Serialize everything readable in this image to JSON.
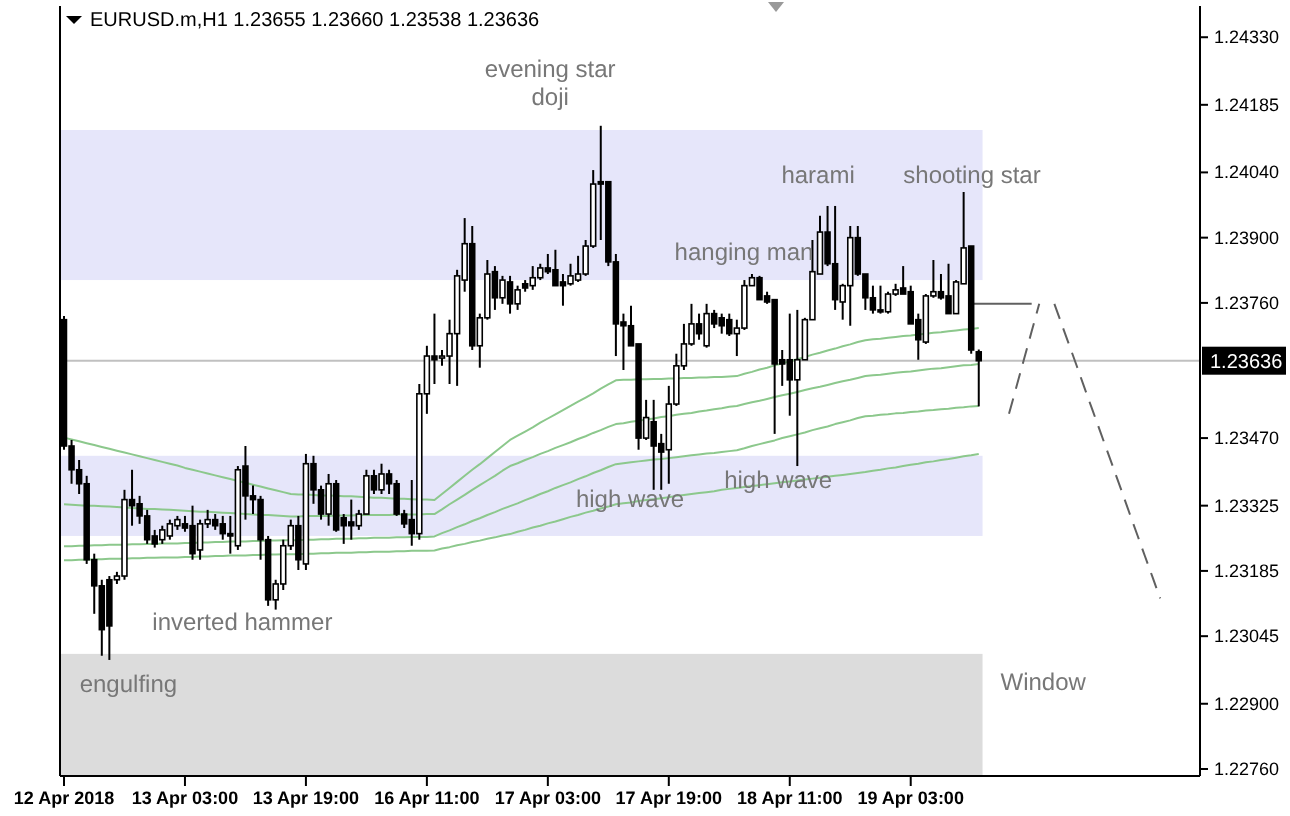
{
  "chart_data": {
    "type": "candlestick",
    "title": "EURUSD.m,H1 1.23655 1.23660 1.23538 1.23636",
    "color": "#000000",
    "categories": [
      "12 Apr 2018",
      null,
      null,
      null,
      null,
      null,
      null,
      null,
      null,
      null,
      null,
      null,
      null,
      null,
      null,
      null,
      "13 Apr 03:00",
      null,
      null,
      null,
      null,
      null,
      null,
      null,
      null,
      null,
      null,
      null,
      null,
      null,
      null,
      null,
      "13 Apr 19:00",
      null,
      null,
      null,
      null,
      null,
      null,
      null,
      null,
      null,
      null,
      null,
      null,
      null,
      null,
      null,
      "16 Apr 11:00",
      null,
      null,
      null,
      null,
      null,
      null,
      null,
      null,
      null,
      null,
      null,
      null,
      null,
      null,
      null,
      "17 Apr 03:00",
      null,
      null,
      null,
      null,
      null,
      null,
      null,
      null,
      null,
      null,
      null,
      null,
      null,
      null,
      null,
      "17 Apr 19:00",
      null,
      null,
      null,
      null,
      null,
      null,
      null,
      null,
      null,
      null,
      null,
      null,
      null,
      null,
      null,
      "18 Apr 11:00",
      null,
      null,
      null,
      null,
      null,
      null,
      null,
      null,
      null,
      null,
      null,
      null,
      null,
      null,
      null,
      "19 Apr 03:00",
      null,
      null,
      null,
      null,
      null,
      null,
      null,
      null,
      null,
      null,
      null,
      null,
      null,
      null,
      null,
      null,
      null,
      null,
      null,
      null,
      null,
      null,
      null,
      null,
      null,
      null,
      null,
      null,
      null,
      null,
      null,
      null,
      null,
      null,
      null,
      null,
      null,
      null
    ],
    "ohlc": [
      [
        1.23724,
        1.23732,
        1.23445,
        1.23453
      ],
      [
        1.23453,
        1.23466,
        1.23372,
        1.23402
      ],
      [
        1.23402,
        1.23423,
        1.2335,
        1.23372
      ],
      [
        1.23372,
        1.23389,
        1.232,
        1.23209
      ],
      [
        1.23209,
        1.23222,
        1.23093,
        1.23153
      ],
      [
        1.23153,
        1.23166,
        1.23003,
        1.23059
      ],
      [
        1.23166,
        1.23174,
        1.22994,
        1.23067
      ],
      [
        1.23166,
        1.23183,
        1.23157,
        1.23174
      ],
      [
        1.23174,
        1.23359,
        1.23166,
        1.23338
      ],
      [
        1.23338,
        1.23402,
        1.23282,
        1.23325
      ],
      [
        1.23329,
        1.23346,
        1.23286,
        1.23303
      ],
      [
        1.23303,
        1.23316,
        1.23243,
        1.23252
      ],
      [
        1.2326,
        1.23273,
        1.23235,
        1.23243
      ],
      [
        1.23252,
        1.23282,
        1.23243,
        1.23273
      ],
      [
        1.2326,
        1.23295,
        1.23252,
        1.23286
      ],
      [
        1.23282,
        1.23303,
        1.23273,
        1.23295
      ],
      [
        1.23286,
        1.23303,
        1.23269,
        1.23277
      ],
      [
        1.23282,
        1.23325,
        1.23209,
        1.23222
      ],
      [
        1.2323,
        1.23295,
        1.23209,
        1.23286
      ],
      [
        1.23286,
        1.23316,
        1.23277,
        1.23295
      ],
      [
        1.23295,
        1.23307,
        1.23273,
        1.23282
      ],
      [
        1.23286,
        1.23303,
        1.23252,
        1.23265
      ],
      [
        1.23265,
        1.23303,
        1.23222,
        1.2326
      ],
      [
        1.23239,
        1.2341,
        1.2323,
        1.23402
      ],
      [
        1.2341,
        1.23453,
        1.23295,
        1.23346
      ],
      [
        1.23346,
        1.23368,
        1.23307,
        1.23338
      ],
      [
        1.23338,
        1.23346,
        1.23209,
        1.23252
      ],
      [
        1.23252,
        1.2326,
        1.2311,
        1.23123
      ],
      [
        1.23123,
        1.23166,
        1.23102,
        1.23157
      ],
      [
        1.23157,
        1.23252,
        1.23144,
        1.23239
      ],
      [
        1.23239,
        1.23295,
        1.2323,
        1.23282
      ],
      [
        1.23282,
        1.23303,
        1.23187,
        1.23209
      ],
      [
        1.232,
        1.23436,
        1.23187,
        1.23415
      ],
      [
        1.23415,
        1.23432,
        1.23329,
        1.23359
      ],
      [
        1.23359,
        1.23368,
        1.23295,
        1.23307
      ],
      [
        1.23307,
        1.23393,
        1.23282,
        1.23372
      ],
      [
        1.23372,
        1.2338,
        1.23269,
        1.23273
      ],
      [
        1.23299,
        1.23307,
        1.23243,
        1.23282
      ],
      [
        1.2329,
        1.23338,
        1.23252,
        1.23282
      ],
      [
        1.23282,
        1.23316,
        1.23273,
        1.23307
      ],
      [
        1.23307,
        1.23402,
        1.23307,
        1.23389
      ],
      [
        1.23389,
        1.23402,
        1.2335,
        1.23359
      ],
      [
        1.23359,
        1.23415,
        1.2335,
        1.23393
      ],
      [
        1.23393,
        1.23402,
        1.2335,
        1.23372
      ],
      [
        1.23372,
        1.2338,
        1.23303,
        1.23307
      ],
      [
        1.23307,
        1.23316,
        1.23277,
        1.23286
      ],
      [
        1.23295,
        1.2338,
        1.23239,
        1.23265
      ],
      [
        1.23265,
        1.23586,
        1.23252,
        1.23565
      ],
      [
        1.23565,
        1.23668,
        1.23522,
        1.23646
      ],
      [
        1.23646,
        1.23737,
        1.23586,
        1.23638
      ],
      [
        1.23642,
        1.23659,
        1.23625,
        1.23646
      ],
      [
        1.23646,
        1.23724,
        1.23586,
        1.23694
      ],
      [
        1.23694,
        1.23831,
        1.23582,
        1.23818
      ],
      [
        1.23809,
        1.23942,
        1.23784,
        1.23887
      ],
      [
        1.23887,
        1.23925,
        1.23659,
        1.23668
      ],
      [
        1.23668,
        1.23737,
        1.23621,
        1.23728
      ],
      [
        1.23728,
        1.23852,
        1.23724,
        1.23822
      ],
      [
        1.23827,
        1.23839,
        1.23745,
        1.23771
      ],
      [
        1.23771,
        1.23818,
        1.23758,
        1.23809
      ],
      [
        1.23805,
        1.23818,
        1.23737,
        1.23758
      ],
      [
        1.23758,
        1.23797,
        1.23745,
        1.23788
      ],
      [
        1.23801,
        1.23809,
        1.23784,
        1.23792
      ],
      [
        1.23797,
        1.23839,
        1.23788,
        1.23814
      ],
      [
        1.23814,
        1.23844,
        1.23809,
        1.23835
      ],
      [
        1.23835,
        1.23865,
        1.23822,
        1.23827
      ],
      [
        1.23831,
        1.23874,
        1.23797,
        1.23797
      ],
      [
        1.23805,
        1.23822,
        1.23754,
        1.23797
      ],
      [
        1.23801,
        1.23844,
        1.23797,
        1.23818
      ],
      [
        1.23809,
        1.23861,
        1.23805,
        1.23822
      ],
      [
        1.23822,
        1.23895,
        1.23818,
        1.23882
      ],
      [
        1.23882,
        1.24045,
        1.23878,
        1.24015
      ],
      [
        1.2402,
        1.2414,
        1.23895,
        1.24015
      ],
      [
        1.2402,
        1.2402,
        1.23839,
        1.23848
      ],
      [
        1.23848,
        1.23865,
        1.23646,
        1.23715
      ],
      [
        1.23719,
        1.23737,
        1.23616,
        1.23711
      ],
      [
        1.23711,
        1.23754,
        1.23668,
        1.23668
      ],
      [
        1.23672,
        1.23672,
        1.23445,
        1.2347
      ],
      [
        1.2347,
        1.23552,
        1.23466,
        1.23514
      ],
      [
        1.23505,
        1.23552,
        1.23359,
        1.23453
      ],
      [
        1.23458,
        1.23479,
        1.23359,
        1.2344
      ],
      [
        1.23445,
        1.23582,
        1.23372,
        1.23543
      ],
      [
        1.23543,
        1.23651,
        1.23539,
        1.23625
      ],
      [
        1.23625,
        1.23715,
        1.23616,
        1.23672
      ],
      [
        1.23672,
        1.23758,
        1.23668,
        1.23715
      ],
      [
        1.23715,
        1.23737,
        1.23681,
        1.23694
      ],
      [
        1.23668,
        1.23758,
        1.23664,
        1.23737
      ],
      [
        1.23737,
        1.23745,
        1.23706,
        1.23715
      ],
      [
        1.23728,
        1.23737,
        1.23694,
        1.23711
      ],
      [
        1.23724,
        1.23737,
        1.23689,
        1.23694
      ],
      [
        1.23694,
        1.23724,
        1.23646,
        1.23706
      ],
      [
        1.23706,
        1.23809,
        1.23702,
        1.23797
      ],
      [
        1.23797,
        1.23822,
        1.23797,
        1.23814
      ],
      [
        1.23814,
        1.23818,
        1.23767,
        1.23767
      ],
      [
        1.23775,
        1.23784,
        1.23758,
        1.23762
      ],
      [
        1.23767,
        1.23767,
        1.23479,
        1.23629
      ],
      [
        1.23638,
        1.23659,
        1.23582,
        1.23629
      ],
      [
        1.23638,
        1.23737,
        1.23518,
        1.23595
      ],
      [
        1.23595,
        1.23745,
        1.2341,
        1.23638
      ],
      [
        1.23638,
        1.23728,
        1.23638,
        1.23724
      ],
      [
        1.23724,
        1.23895,
        1.23724,
        1.23827
      ],
      [
        1.23822,
        1.23947,
        1.23822,
        1.23912
      ],
      [
        1.23912,
        1.23968,
        1.23839,
        1.23844
      ],
      [
        1.23844,
        1.23968,
        1.23745,
        1.23767
      ],
      [
        1.23762,
        1.23801,
        1.23724,
        1.23797
      ],
      [
        1.23797,
        1.23925,
        1.23711,
        1.239
      ],
      [
        1.239,
        1.23925,
        1.23818,
        1.23822
      ],
      [
        1.23822,
        1.23822,
        1.23745,
        1.23771
      ],
      [
        1.23771,
        1.23797,
        1.23737,
        1.23745
      ],
      [
        1.23745,
        1.23797,
        1.23737,
        1.23741
      ],
      [
        1.23741,
        1.23784,
        1.23737,
        1.23779
      ],
      [
        1.23779,
        1.23801,
        1.23775,
        1.23788
      ],
      [
        1.23792,
        1.23839,
        1.23779,
        1.23779
      ],
      [
        1.23784,
        1.23797,
        1.23715,
        1.23715
      ],
      [
        1.23724,
        1.23737,
        1.23638,
        1.23681
      ],
      [
        1.23676,
        1.23779,
        1.23672,
        1.23775
      ],
      [
        1.23775,
        1.23852,
        1.23771,
        1.23784
      ],
      [
        1.23784,
        1.23822,
        1.23767,
        1.23771
      ],
      [
        1.23775,
        1.23844,
        1.23737,
        1.23737
      ],
      [
        1.23737,
        1.23809,
        1.23737,
        1.23805
      ],
      [
        1.23801,
        1.23998,
        1.23801,
        1.23878
      ],
      [
        1.23882,
        1.23882,
        1.23651,
        1.23659
      ],
      [
        1.23655,
        1.2366,
        1.23538,
        1.23636
      ],
      null,
      null,
      null,
      null,
      null,
      null,
      null,
      null,
      null,
      null,
      null,
      null,
      null,
      null,
      null,
      null,
      null,
      null,
      null,
      null,
      null,
      null,
      null,
      null,
      null,
      null,
      null,
      null,
      null
    ],
    "series": [
      {
        "type": "line",
        "color": "#8cc88c",
        "values": [
          1.23471,
          1.23467,
          1.23463,
          1.23459,
          1.23455,
          1.23451,
          1.23447,
          1.23443,
          1.23439,
          1.23435,
          1.23431,
          1.23427,
          1.23423,
          1.23419,
          1.23415,
          1.23411,
          1.23406,
          1.23402,
          1.23398,
          1.23394,
          1.2339,
          1.23386,
          1.23382,
          1.23378,
          1.23374,
          1.2337,
          1.23366,
          1.23362,
          1.23358,
          1.23354,
          1.2335,
          1.23349,
          1.23349,
          1.23348,
          1.23347,
          1.23347,
          1.23346,
          1.23345,
          1.23345,
          1.23344,
          1.23343,
          1.23342,
          1.23342,
          1.23341,
          1.2334,
          1.2334,
          1.23339,
          1.23338,
          1.23338,
          1.23337,
          1.2335,
          1.23363,
          1.23376,
          1.23389,
          1.23402,
          1.23414,
          1.23427,
          1.2344,
          1.23453,
          1.23466,
          1.23475,
          1.23484,
          1.23493,
          1.23503,
          1.23512,
          1.23521,
          1.2353,
          1.23539,
          1.23548,
          1.23557,
          1.23566,
          1.23576,
          1.23585,
          1.23594,
          1.23595,
          1.23595,
          1.23596,
          1.23596,
          1.23597,
          1.23597,
          1.23598,
          1.23598,
          1.23599,
          1.23599,
          1.236,
          1.236,
          1.23601,
          1.23601,
          1.23602,
          1.23603,
          1.23608,
          1.23612,
          1.23617,
          1.23621,
          1.23626,
          1.2363,
          1.23635,
          1.23639,
          1.23644,
          1.23649,
          1.23653,
          1.23658,
          1.23662,
          1.23667,
          1.23671,
          1.23676,
          1.2368,
          1.23682,
          1.23683,
          1.23685,
          1.23687,
          1.23689,
          1.2369,
          1.23692,
          1.23694,
          1.23696,
          1.23697,
          1.23699,
          1.23701,
          1.23703,
          1.23704,
          1.23706,
          null,
          null,
          null,
          null,
          null,
          null,
          null,
          null,
          null,
          null,
          null,
          null,
          null,
          null,
          null,
          null,
          null,
          null,
          null,
          null,
          null,
          null,
          null,
          null,
          null,
          null,
          null,
          null,
          null
        ]
      },
      {
        "type": "line",
        "color": "#8cc88c",
        "values": [
          1.23328,
          1.23327,
          1.23326,
          1.23325,
          1.23325,
          1.23324,
          1.23323,
          1.23322,
          1.23321,
          1.2332,
          1.23319,
          1.23318,
          1.23318,
          1.23317,
          1.23316,
          1.23315,
          1.23314,
          1.23313,
          1.23312,
          1.23312,
          1.23311,
          1.2331,
          1.23309,
          1.23308,
          1.23307,
          1.23306,
          1.23305,
          1.23305,
          1.23304,
          1.23303,
          1.23302,
          1.23302,
          1.23303,
          1.23303,
          1.23303,
          1.23303,
          1.23304,
          1.23304,
          1.23304,
          1.23305,
          1.23305,
          1.23305,
          1.23305,
          1.23305,
          1.23306,
          1.23306,
          1.23306,
          1.23306,
          1.23307,
          1.23307,
          1.23317,
          1.23328,
          1.23338,
          1.23348,
          1.23359,
          1.23369,
          1.23379,
          1.23389,
          1.234,
          1.2341,
          1.23416,
          1.23423,
          1.23429,
          1.23436,
          1.23442,
          1.23449,
          1.23455,
          1.23461,
          1.23468,
          1.23474,
          1.23481,
          1.23487,
          1.23494,
          1.235,
          1.23502,
          1.23505,
          1.23507,
          1.2351,
          1.23512,
          1.23515,
          1.23517,
          1.2352,
          1.23522,
          1.23524,
          1.23527,
          1.23529,
          1.23532,
          1.23534,
          1.23537,
          1.23539,
          1.23543,
          1.23547,
          1.2355,
          1.23554,
          1.23558,
          1.23562,
          1.23565,
          1.23569,
          1.23573,
          1.23577,
          1.2358,
          1.23584,
          1.23588,
          1.23592,
          1.23595,
          1.23599,
          1.23603,
          1.23605,
          1.23606,
          1.23608,
          1.2361,
          1.23612,
          1.23613,
          1.23615,
          1.23617,
          1.23619,
          1.2362,
          1.23622,
          1.23624,
          1.23626,
          1.23627,
          1.23629,
          null,
          null,
          null,
          null,
          null,
          null,
          null,
          null,
          null,
          null,
          null,
          null,
          null,
          null,
          null,
          null,
          null,
          null,
          null,
          null,
          null,
          null,
          null,
          null,
          null,
          null,
          null,
          null,
          null
        ]
      },
      {
        "type": "line",
        "color": "#8cc88c",
        "values": [
          1.23238,
          1.23238,
          1.23239,
          1.23239,
          1.2324,
          1.2324,
          1.23241,
          1.23241,
          1.23241,
          1.23242,
          1.23242,
          1.23243,
          1.23243,
          1.23244,
          1.23244,
          1.23244,
          1.23245,
          1.23245,
          1.23246,
          1.23246,
          1.23247,
          1.23247,
          1.23248,
          1.23248,
          1.23248,
          1.23249,
          1.23249,
          1.2325,
          1.2325,
          1.23251,
          1.23251,
          1.23251,
          1.23252,
          1.23252,
          1.23253,
          1.23253,
          1.23254,
          1.23254,
          1.23254,
          1.23255,
          1.23255,
          1.23256,
          1.23256,
          1.23256,
          1.23257,
          1.23257,
          1.23258,
          1.23258,
          1.23258,
          1.23259,
          1.23266,
          1.23272,
          1.23279,
          1.23285,
          1.23292,
          1.23298,
          1.23305,
          1.23311,
          1.23318,
          1.23324,
          1.2333,
          1.23337,
          1.23343,
          1.2335,
          1.23356,
          1.23363,
          1.23369,
          1.23375,
          1.23382,
          1.23388,
          1.23395,
          1.23401,
          1.23408,
          1.23414,
          1.23416,
          1.23418,
          1.2342,
          1.23422,
          1.23424,
          1.23425,
          1.23427,
          1.23429,
          1.23431,
          1.23433,
          1.23435,
          1.23437,
          1.23438,
          1.2344,
          1.23442,
          1.23444,
          1.23448,
          1.23453,
          1.23457,
          1.23461,
          1.23465,
          1.2347,
          1.23474,
          1.23478,
          1.23482,
          1.23487,
          1.23491,
          1.23495,
          1.235,
          1.23504,
          1.23508,
          1.23513,
          1.23517,
          1.23518,
          1.2352,
          1.23521,
          1.23523,
          1.23524,
          1.23526,
          1.23527,
          1.23529,
          1.2353,
          1.23532,
          1.23533,
          1.23535,
          1.23536,
          1.23538,
          1.23539,
          null,
          null,
          null,
          null,
          null,
          null,
          null,
          null,
          null,
          null,
          null,
          null,
          null,
          null,
          null,
          null,
          null,
          null,
          null,
          null,
          null,
          null,
          null,
          null,
          null,
          null,
          null,
          null,
          null
        ]
      },
      {
        "type": "line",
        "color": "#8cc88c",
        "values": [
          1.23208,
          1.23208,
          1.23209,
          1.23209,
          1.2321,
          1.2321,
          1.23211,
          1.23211,
          1.23211,
          1.23212,
          1.23212,
          1.23213,
          1.23213,
          1.23214,
          1.23214,
          1.23214,
          1.23215,
          1.23215,
          1.23216,
          1.23216,
          1.23217,
          1.23217,
          1.23218,
          1.23218,
          1.23218,
          1.23219,
          1.23219,
          1.2322,
          1.2322,
          1.23221,
          1.23221,
          1.23221,
          1.23222,
          1.23222,
          1.23223,
          1.23223,
          1.23224,
          1.23224,
          1.23224,
          1.23225,
          1.23225,
          1.23226,
          1.23226,
          1.23226,
          1.23227,
          1.23227,
          1.23228,
          1.23228,
          1.23228,
          1.23229,
          1.23233,
          1.23236,
          1.2324,
          1.23243,
          1.23247,
          1.2325,
          1.23254,
          1.23257,
          1.23261,
          1.23264,
          1.23269,
          1.23273,
          1.23278,
          1.23282,
          1.23287,
          1.23291,
          1.23296,
          1.23301,
          1.23305,
          1.2331,
          1.23314,
          1.23319,
          1.23323,
          1.23328,
          1.2333,
          1.23332,
          1.23335,
          1.23337,
          1.23339,
          1.23341,
          1.23343,
          1.23346,
          1.23348,
          1.2335,
          1.23352,
          1.23354,
          1.23356,
          1.23359,
          1.23361,
          1.23363,
          1.23365,
          1.23367,
          1.23369,
          1.23371,
          1.23373,
          1.23375,
          1.23377,
          1.23379,
          1.23381,
          1.23383,
          1.23385,
          1.23387,
          1.23389,
          1.23391,
          1.23393,
          1.23395,
          1.23397,
          1.234,
          1.23402,
          1.23405,
          1.23407,
          1.2341,
          1.23413,
          1.23415,
          1.23418,
          1.2342,
          1.23423,
          1.23425,
          1.23428,
          1.23431,
          1.23433,
          1.23436,
          null,
          null,
          null,
          null,
          null,
          null,
          null,
          null,
          null,
          null,
          null,
          null,
          null,
          null,
          null,
          null,
          null,
          null,
          null,
          null,
          null,
          null,
          null,
          null,
          null,
          null,
          null,
          null,
          null
        ]
      },
      {
        "type": "line",
        "color": "#606060",
        "values": [
          null,
          null,
          null,
          null,
          null,
          null,
          null,
          null,
          null,
          null,
          null,
          null,
          null,
          null,
          null,
          null,
          null,
          null,
          null,
          null,
          null,
          null,
          null,
          null,
          null,
          null,
          null,
          null,
          null,
          null,
          null,
          null,
          null,
          null,
          null,
          null,
          null,
          null,
          null,
          null,
          null,
          null,
          null,
          null,
          null,
          null,
          null,
          null,
          null,
          null,
          null,
          null,
          null,
          null,
          null,
          null,
          null,
          null,
          null,
          null,
          null,
          null,
          null,
          null,
          null,
          null,
          null,
          null,
          null,
          null,
          null,
          null,
          null,
          null,
          null,
          null,
          null,
          null,
          null,
          null,
          null,
          null,
          null,
          null,
          null,
          null,
          null,
          null,
          null,
          null,
          null,
          null,
          null,
          null,
          null,
          null,
          null,
          null,
          null,
          null,
          null,
          null,
          null,
          null,
          null,
          null,
          null,
          null,
          null,
          null,
          null,
          null,
          null,
          null,
          null,
          null,
          null,
          null,
          null,
          null,
          1.23758,
          1.23758,
          1.23758,
          1.23758,
          1.23758,
          1.23758,
          1.23758,
          1.23758,
          1.23758,
          null,
          null,
          null,
          null,
          null,
          null,
          null,
          null,
          null,
          null,
          null,
          null,
          null,
          null,
          null,
          null,
          null,
          null,
          null,
          null,
          null,
          null
        ]
      },
      {
        "type": "line",
        "color": "#606060",
        "line_style": "dashed",
        "values": [
          null,
          null,
          null,
          null,
          null,
          null,
          null,
          null,
          null,
          null,
          null,
          null,
          null,
          null,
          null,
          null,
          null,
          null,
          null,
          null,
          null,
          null,
          null,
          null,
          null,
          null,
          null,
          null,
          null,
          null,
          null,
          null,
          null,
          null,
          null,
          null,
          null,
          null,
          null,
          null,
          null,
          null,
          null,
          null,
          null,
          null,
          null,
          null,
          null,
          null,
          null,
          null,
          null,
          null,
          null,
          null,
          null,
          null,
          null,
          null,
          null,
          null,
          null,
          null,
          null,
          null,
          null,
          null,
          null,
          null,
          null,
          null,
          null,
          null,
          null,
          null,
          null,
          null,
          null,
          null,
          null,
          null,
          null,
          null,
          null,
          null,
          null,
          null,
          null,
          null,
          null,
          null,
          null,
          null,
          null,
          null,
          null,
          null,
          null,
          null,
          null,
          null,
          null,
          null,
          null,
          null,
          null,
          null,
          null,
          null,
          null,
          null,
          null,
          null,
          null,
          null,
          null,
          null,
          null,
          null,
          null,
          null,
          null,
          null,
          null,
          1.23522,
          1.23581,
          1.2364,
          1.23699,
          1.23758,
          null,
          null,
          null,
          null,
          null,
          null,
          null,
          null,
          null,
          null,
          null,
          null,
          null,
          null,
          null,
          null,
          null,
          null,
          null,
          null,
          null
        ]
      },
      {
        "type": "line",
        "color": "#606060",
        "line_style": "dashed",
        "values": [
          null,
          null,
          null,
          null,
          null,
          null,
          null,
          null,
          null,
          null,
          null,
          null,
          null,
          null,
          null,
          null,
          null,
          null,
          null,
          null,
          null,
          null,
          null,
          null,
          null,
          null,
          null,
          null,
          null,
          null,
          null,
          null,
          null,
          null,
          null,
          null,
          null,
          null,
          null,
          null,
          null,
          null,
          null,
          null,
          null,
          null,
          null,
          null,
          null,
          null,
          null,
          null,
          null,
          null,
          null,
          null,
          null,
          null,
          null,
          null,
          null,
          null,
          null,
          null,
          null,
          null,
          null,
          null,
          null,
          null,
          null,
          null,
          null,
          null,
          null,
          null,
          null,
          null,
          null,
          null,
          null,
          null,
          null,
          null,
          null,
          null,
          null,
          null,
          null,
          null,
          null,
          null,
          null,
          null,
          null,
          null,
          null,
          null,
          null,
          null,
          null,
          null,
          null,
          null,
          null,
          null,
          null,
          null,
          null,
          null,
          null,
          null,
          null,
          null,
          null,
          null,
          null,
          null,
          null,
          null,
          null,
          null,
          null,
          null,
          null,
          null,
          null,
          null,
          null,
          null,
          null,
          1.23758,
          1.23713,
          1.23668,
          1.23623,
          1.23577,
          1.23532,
          1.23487,
          1.23442,
          1.23397,
          1.23352,
          1.23306,
          1.23261,
          1.23216,
          1.23171,
          1.23126,
          null,
          null,
          null,
          null,
          null
        ]
      }
    ],
    "ylim": [
      1.22745,
      1.24397
    ],
    "yticks": [
      {
        "value": 1.2276,
        "label": "1.22760"
      },
      {
        "value": 1.229,
        "label": "1.22900"
      },
      {
        "value": 1.23045,
        "label": "1.23045"
      },
      {
        "value": 1.23185,
        "label": "1.23185"
      },
      {
        "value": 1.23325,
        "label": "1.23325"
      },
      {
        "value": 1.2347,
        "label": "1.23470"
      },
      {
        "value": 1.2376,
        "label": "1.23760"
      },
      {
        "value": 1.239,
        "label": "1.23900"
      },
      {
        "value": 1.2404,
        "label": "1.24040"
      },
      {
        "value": 1.24185,
        "label": "1.24185"
      },
      {
        "value": 1.2433,
        "label": "1.24330"
      }
    ],
    "ref_lines": [
      {
        "axis": "y",
        "value": 1.23636,
        "label": "1.23636",
        "color": "#c0c0c0"
      }
    ],
    "bands": [
      {
        "axis": "y",
        "from": 1.23809,
        "to": 1.24131,
        "color": "#e6e6fa"
      },
      {
        "axis": "y",
        "from": 1.2326,
        "to": 1.23432,
        "color": "#e6e6fa"
      },
      {
        "axis": "y",
        "from": 1.22745,
        "to": 1.23007,
        "color": "#dcdcdc",
        "label": "Window"
      }
    ],
    "annotations": [
      "evening star\ndoji",
      "harami",
      "shooting star",
      "hanging man",
      "high wave",
      "high wave",
      "inverted hammer",
      "engulfing"
    ]
  }
}
